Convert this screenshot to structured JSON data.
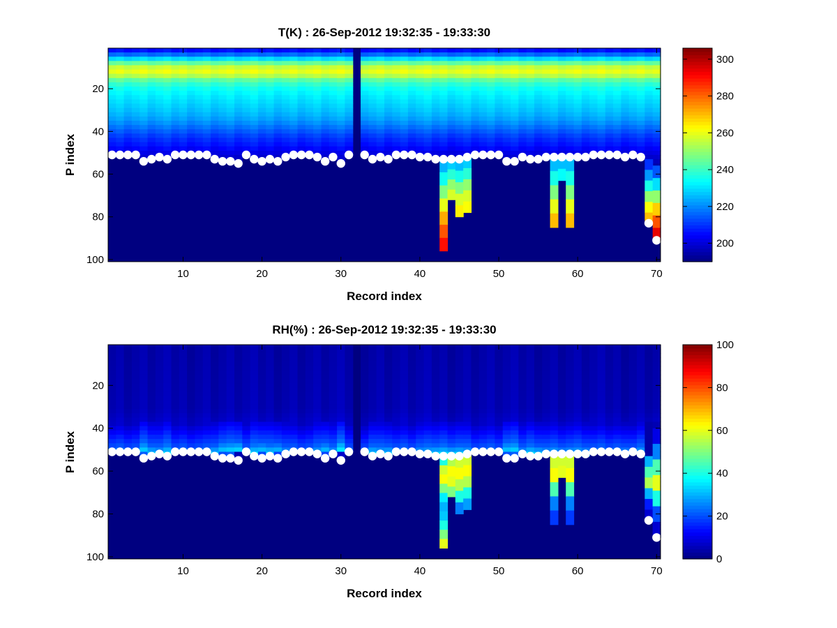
{
  "chart_data": [
    {
      "type": "heatmap",
      "title": "T(K) : 26-Sep-2012 19:32:35 - 19:33:30",
      "xlabel": "Record index",
      "ylabel": "P index",
      "xlim": [
        0.5,
        70.5
      ],
      "ylim": [
        1,
        101
      ],
      "y_direction": "reversed",
      "xticks": [
        10,
        20,
        30,
        40,
        50,
        60,
        70
      ],
      "yticks": [
        20,
        40,
        60,
        80,
        100
      ],
      "colorbar": {
        "min": 190,
        "max": 306,
        "ticks": [
          200,
          220,
          240,
          260,
          280,
          300
        ],
        "colormap": "jet"
      },
      "missing_records": [
        32
      ],
      "profile": [
        {
          "p": 1,
          "v": 206
        },
        {
          "p": 4,
          "v": 222
        },
        {
          "p": 7,
          "v": 245
        },
        {
          "p": 9,
          "v": 256
        },
        {
          "p": 11,
          "v": 260
        },
        {
          "p": 13,
          "v": 254
        },
        {
          "p": 15,
          "v": 244
        },
        {
          "p": 18,
          "v": 236
        },
        {
          "p": 22,
          "v": 232
        },
        {
          "p": 26,
          "v": 229
        },
        {
          "p": 30,
          "v": 226
        },
        {
          "p": 34,
          "v": 222
        },
        {
          "p": 38,
          "v": 216
        },
        {
          "p": 42,
          "v": 210
        },
        {
          "p": 46,
          "v": 206
        },
        {
          "p": 50,
          "v": 200
        },
        {
          "p": 56,
          "v": 194
        }
      ],
      "dots": [
        51,
        51,
        51,
        51,
        54,
        53,
        52,
        53,
        51,
        51,
        51,
        51,
        51,
        53,
        54,
        54,
        55,
        51,
        53,
        54,
        53,
        54,
        52,
        51,
        51,
        51,
        52,
        54,
        52,
        55,
        51,
        null,
        51,
        53,
        52,
        53,
        51,
        51,
        51,
        52,
        52,
        53,
        53,
        53,
        53,
        52,
        51,
        51,
        51,
        51,
        54,
        54,
        52,
        53,
        53,
        52,
        52,
        52,
        52,
        52,
        52,
        51,
        51,
        51,
        51,
        52,
        51,
        52,
        83,
        91
      ],
      "anomalies": [
        {
          "record": 43,
          "from": 53,
          "to": 96,
          "values_top_to_bottom": [
            225,
            235,
            248,
            260,
            272,
            282,
            290
          ]
        },
        {
          "record": 44,
          "from": 53,
          "to": 72,
          "values_top_to_bottom": [
            228,
            238,
            250,
            258
          ]
        },
        {
          "record": 45,
          "from": 53,
          "to": 80,
          "values_top_to_bottom": [
            226,
            236,
            248,
            258,
            264
          ]
        },
        {
          "record": 46,
          "from": 52,
          "to": 78,
          "values_top_to_bottom": [
            228,
            238,
            250,
            258,
            262
          ]
        },
        {
          "record": 57,
          "from": 52,
          "to": 85,
          "values_top_to_bottom": [
            226,
            236,
            248,
            260,
            270
          ]
        },
        {
          "record": 58,
          "from": 52,
          "to": 63,
          "values_top_to_bottom": [
            226,
            234
          ]
        },
        {
          "record": 59,
          "from": 52,
          "to": 85,
          "values_top_to_bottom": [
            226,
            236,
            248,
            260,
            270
          ]
        },
        {
          "record": 69,
          "from": 53,
          "to": 83,
          "values_top_to_bottom": [
            210,
            222,
            236,
            250,
            262,
            270
          ]
        },
        {
          "record": 70,
          "from": 56,
          "to": 91,
          "values_top_to_bottom": [
            214,
            230,
            250,
            268,
            282,
            294
          ]
        }
      ]
    },
    {
      "type": "heatmap",
      "title": "RH(%) : 26-Sep-2012 19:32:35 - 19:33:30",
      "xlabel": "Record index",
      "ylabel": "P index",
      "xlim": [
        0.5,
        70.5
      ],
      "ylim": [
        1,
        101
      ],
      "y_direction": "reversed",
      "xticks": [
        10,
        20,
        30,
        40,
        50,
        60,
        70
      ],
      "yticks": [
        20,
        40,
        60,
        80,
        100
      ],
      "colorbar": {
        "min": 0,
        "max": 100,
        "ticks": [
          0,
          20,
          40,
          60,
          80,
          100
        ],
        "colormap": "jet"
      },
      "missing_records": [
        32
      ],
      "profile": [
        {
          "p": 1,
          "v": 4
        },
        {
          "p": 30,
          "v": 5
        },
        {
          "p": 36,
          "v": 7
        },
        {
          "p": 40,
          "v": 12
        },
        {
          "p": 44,
          "v": 17
        },
        {
          "p": 48,
          "v": 22
        },
        {
          "p": 50,
          "v": 28
        },
        {
          "p": 52,
          "v": 34
        },
        {
          "p": 54,
          "v": 6
        },
        {
          "p": 100,
          "v": 4
        }
      ],
      "dots": [
        51,
        51,
        51,
        51,
        54,
        53,
        52,
        53,
        51,
        51,
        51,
        51,
        51,
        53,
        54,
        54,
        55,
        51,
        53,
        54,
        53,
        54,
        52,
        51,
        51,
        51,
        52,
        54,
        52,
        55,
        51,
        null,
        51,
        53,
        52,
        53,
        51,
        51,
        51,
        52,
        52,
        53,
        53,
        53,
        53,
        52,
        51,
        51,
        51,
        51,
        54,
        54,
        52,
        53,
        53,
        52,
        52,
        52,
        52,
        52,
        52,
        51,
        51,
        51,
        51,
        52,
        51,
        52,
        83,
        91
      ],
      "anomalies": [
        {
          "record": 43,
          "from": 53,
          "to": 96,
          "values_top_to_bottom": [
            40,
            58,
            62,
            50,
            36,
            30,
            32,
            40,
            50,
            60
          ]
        },
        {
          "record": 44,
          "from": 53,
          "to": 72,
          "values_top_to_bottom": [
            55,
            62,
            60,
            50
          ]
        },
        {
          "record": 45,
          "from": 53,
          "to": 80,
          "values_top_to_bottom": [
            58,
            62,
            55,
            40,
            25
          ]
        },
        {
          "record": 46,
          "from": 52,
          "to": 78,
          "values_top_to_bottom": [
            58,
            62,
            55,
            40,
            28
          ]
        },
        {
          "record": 57,
          "from": 52,
          "to": 85,
          "values_top_to_bottom": [
            58,
            62,
            45,
            25,
            18
          ]
        },
        {
          "record": 58,
          "from": 52,
          "to": 63,
          "values_top_to_bottom": [
            58,
            60
          ]
        },
        {
          "record": 59,
          "from": 52,
          "to": 85,
          "values_top_to_bottom": [
            58,
            62,
            45,
            25,
            18
          ]
        },
        {
          "record": 69,
          "from": 53,
          "to": 83,
          "values_top_to_bottom": [
            30,
            45,
            55,
            30,
            15,
            8
          ]
        },
        {
          "record": 70,
          "from": 40,
          "to": 91,
          "values_top_to_bottom": [
            10,
            25,
            45,
            60,
            40,
            20,
            8
          ]
        }
      ]
    }
  ]
}
